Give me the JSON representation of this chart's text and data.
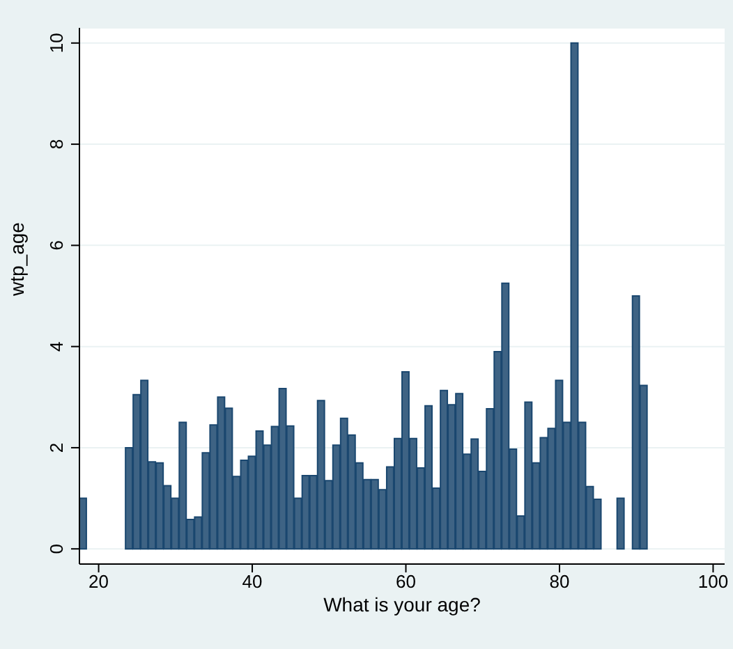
{
  "chart_data": {
    "type": "bar",
    "xlabel": "What is your age?",
    "ylabel": "wtp_age",
    "x": [
      18,
      24,
      25,
      26,
      27,
      28,
      29,
      30,
      31,
      32,
      33,
      34,
      35,
      36,
      37,
      38,
      39,
      40,
      41,
      42,
      43,
      44,
      45,
      46,
      47,
      48,
      49,
      50,
      51,
      52,
      53,
      54,
      55,
      56,
      57,
      58,
      59,
      60,
      61,
      62,
      63,
      64,
      65,
      66,
      67,
      68,
      69,
      70,
      71,
      72,
      73,
      74,
      75,
      76,
      77,
      78,
      79,
      80,
      81,
      82,
      83,
      84,
      85,
      88,
      90,
      91
    ],
    "values": [
      1.0,
      2.0,
      3.05,
      3.33,
      1.72,
      1.7,
      1.25,
      1.0,
      2.5,
      0.58,
      0.63,
      1.9,
      2.45,
      3.0,
      2.78,
      1.43,
      1.75,
      1.83,
      2.33,
      2.05,
      2.42,
      3.17,
      2.43,
      1.0,
      1.45,
      1.45,
      2.93,
      1.35,
      2.05,
      2.58,
      2.25,
      1.7,
      1.37,
      1.37,
      1.17,
      1.62,
      2.18,
      3.5,
      2.18,
      1.6,
      2.83,
      1.2,
      3.13,
      2.85,
      3.07,
      1.87,
      2.17,
      1.53,
      2.77,
      3.9,
      5.25,
      1.97,
      0.65,
      2.9,
      1.7,
      2.2,
      2.38,
      3.33,
      2.5,
      10.0,
      2.5,
      1.23,
      0.98,
      1.0,
      5.0,
      3.23
    ],
    "color": "#3e6384",
    "xlim": [
      17.5,
      101.5
    ],
    "xticks": [
      20,
      40,
      60,
      80,
      100
    ],
    "ylim": [
      -0.3,
      10.3
    ],
    "yticks": [
      0,
      2,
      4,
      6,
      8,
      10
    ],
    "grid": "y"
  }
}
